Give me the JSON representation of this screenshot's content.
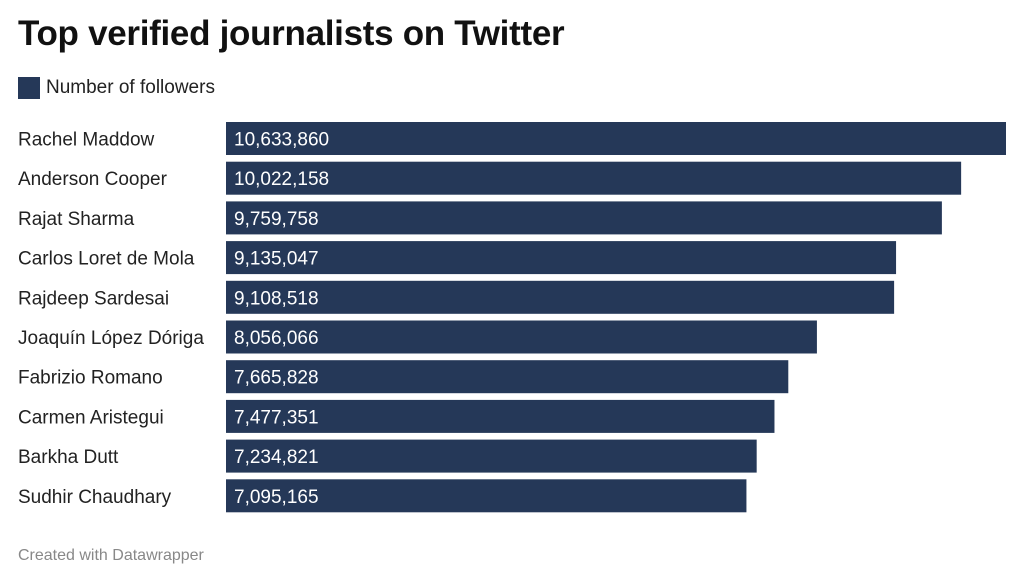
{
  "chart_data": {
    "type": "bar",
    "orientation": "horizontal",
    "title": "Top verified journalists on Twitter",
    "legend": [
      {
        "name": "Number of followers",
        "color": "#253858"
      }
    ],
    "categories": [
      "Rachel Maddow",
      "Anderson Cooper",
      "Rajat Sharma",
      "Carlos Loret de Mola",
      "Rajdeep Sardesai",
      "Joaquín López Dóriga",
      "Fabrizio Romano",
      "Carmen Aristegui",
      "Barkha Dutt",
      "Sudhir Chaudhary"
    ],
    "series": [
      {
        "name": "Number of followers",
        "color": "#253858",
        "values": [
          10633860,
          10022158,
          9759758,
          9135047,
          9108518,
          8056066,
          7665828,
          7477351,
          7234821,
          7095165
        ],
        "labels": [
          "10,633,860",
          "10,022,158",
          "9,759,758",
          "9,135,047",
          "9,108,518",
          "8,056,066",
          "7,665,828",
          "7,477,351",
          "7,234,821",
          "7,095,165"
        ]
      }
    ],
    "xlim": [
      0,
      10633860
    ],
    "legend_position": "top-left",
    "grid": false
  },
  "footer": "Created with Datawrapper"
}
